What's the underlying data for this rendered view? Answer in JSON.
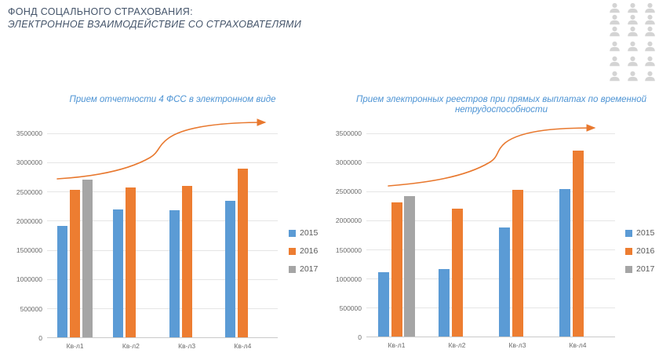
{
  "header": {
    "title_line1": "ФОНД СОЦАЛЬНОГО СТРАХОВАНИЯ:",
    "title_line2": "ЭЛЕКТРОННОЕ ВЗАИМОДЕЙСТВИЕ СО СТРАХОВАТЕЛЯМИ"
  },
  "people_grid": {
    "icon": "person-icon",
    "rows": 6,
    "cols": 3,
    "count": 18,
    "color": "#D4D4D4"
  },
  "colors": {
    "series_2015": "#5B9BD5",
    "series_2016": "#ED7D31",
    "series_2017": "#A5A5A5",
    "chart_title": "#4E94D4",
    "header_text": "#44546A",
    "axis_text": "#6A6A6A",
    "trend_arrow": "#E8782E"
  },
  "chart_data": [
    {
      "type": "bar",
      "title": "Прием отчетности 4 ФСС в электронном виде",
      "categories": [
        "Кв-л1",
        "Кв-л2",
        "Кв-л3",
        "Кв-л4"
      ],
      "series": [
        {
          "name": "2015",
          "color": "#5B9BD5",
          "values": [
            1900000,
            2190000,
            2170000,
            2330000
          ]
        },
        {
          "name": "2016",
          "color": "#ED7D31",
          "values": [
            2520000,
            2560000,
            2590000,
            2890000
          ]
        },
        {
          "name": "2017",
          "color": "#A5A5A5",
          "values": [
            2690000,
            null,
            null,
            null
          ]
        }
      ],
      "ylim": [
        0,
        3500000
      ],
      "ytick_step": 500000,
      "ytick_labels": [
        "0",
        "500000",
        "1000000",
        "1500000",
        "2000000",
        "2500000",
        "3000000",
        "3500000"
      ],
      "grid": true,
      "legend_position": "right",
      "trend_arrow": true
    },
    {
      "type": "bar",
      "title": "Прием электронных реестров при прямых выплатах по временной нетрудоспособности",
      "categories": [
        "Кв-л1",
        "Кв-л2",
        "Кв-л3",
        "Кв-л4"
      ],
      "series": [
        {
          "name": "2015",
          "color": "#5B9BD5",
          "values": [
            1110000,
            1160000,
            1870000,
            2530000
          ]
        },
        {
          "name": "2016",
          "color": "#ED7D31",
          "values": [
            2300000,
            2190000,
            2520000,
            3190000
          ]
        },
        {
          "name": "2017",
          "color": "#A5A5A5",
          "values": [
            2410000,
            null,
            null,
            null
          ]
        }
      ],
      "ylim": [
        0,
        3500000
      ],
      "ytick_step": 500000,
      "ytick_labels": [
        "0",
        "500000",
        "1000000",
        "1500000",
        "2000000",
        "2500000",
        "3000000",
        "3500000"
      ],
      "grid": true,
      "legend_position": "right",
      "trend_arrow": true
    }
  ]
}
